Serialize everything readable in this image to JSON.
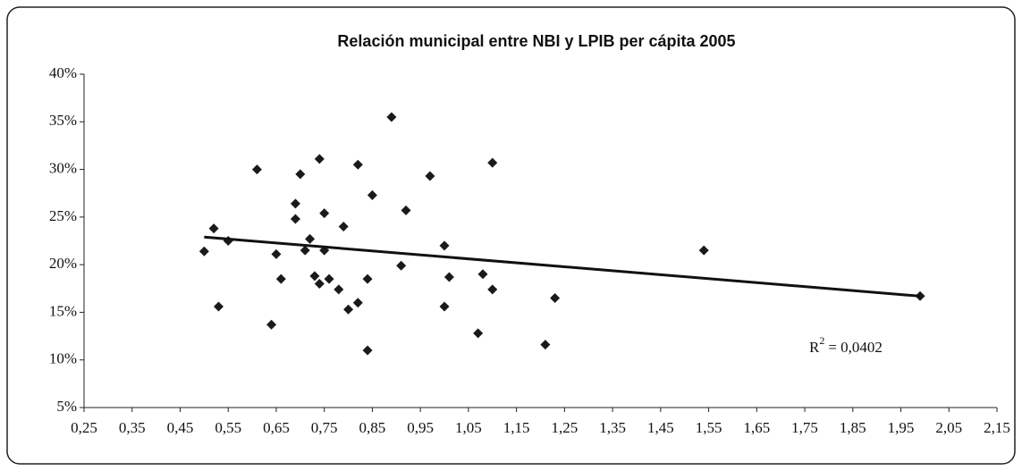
{
  "chart_data": {
    "type": "scatter",
    "title": "Relación municipal entre NBI y LPIB per cápita 2005",
    "series": [
      {
        "color": "#1a1a1a",
        "x": [
          0.5,
          0.52,
          0.53,
          0.55,
          0.61,
          0.64,
          0.65,
          0.66,
          0.69,
          0.69,
          0.7,
          0.71,
          0.72,
          0.73,
          0.74,
          0.74,
          0.75,
          0.75,
          0.76,
          0.78,
          0.79,
          0.8,
          0.82,
          0.82,
          0.84,
          0.84,
          0.85,
          0.89,
          0.91,
          0.92,
          0.97,
          1.0,
          1.0,
          1.01,
          1.07,
          1.08,
          1.1,
          1.1,
          1.21,
          1.23,
          1.54,
          1.99
        ],
        "values": [
          21.4,
          23.8,
          15.6,
          22.5,
          30.0,
          13.7,
          21.1,
          18.5,
          24.8,
          26.4,
          29.5,
          21.5,
          22.7,
          18.8,
          18.0,
          31.1,
          25.4,
          21.5,
          18.5,
          17.4,
          24.0,
          15.3,
          30.5,
          16.0,
          18.5,
          11.0,
          27.3,
          35.5,
          19.9,
          25.7,
          29.3,
          22.0,
          15.6,
          18.7,
          12.8,
          19.0,
          17.4,
          30.7,
          11.6,
          16.5,
          21.5,
          16.7
        ]
      }
    ],
    "trendline": {
      "x": [
        0.5,
        1.99
      ],
      "values": [
        22.9,
        16.7
      ]
    },
    "annotation": {
      "base": "R",
      "exponent": "2",
      "text": "= 0,0402"
    },
    "xlim": [
      0.25,
      2.15
    ],
    "xticks": [
      {
        "value": 0.25,
        "label": "0,25"
      },
      {
        "value": 0.35,
        "label": "0,35"
      },
      {
        "value": 0.45,
        "label": "0,45"
      },
      {
        "value": 0.55,
        "label": "0,55"
      },
      {
        "value": 0.65,
        "label": "0,65"
      },
      {
        "value": 0.75,
        "label": "0,75"
      },
      {
        "value": 0.85,
        "label": "0,85"
      },
      {
        "value": 0.95,
        "label": "0,95"
      },
      {
        "value": 1.05,
        "label": "1,05"
      },
      {
        "value": 1.15,
        "label": "1,15"
      },
      {
        "value": 1.25,
        "label": "1,25"
      },
      {
        "value": 1.35,
        "label": "1,35"
      },
      {
        "value": 1.45,
        "label": "1,45"
      },
      {
        "value": 1.55,
        "label": "1,55"
      },
      {
        "value": 1.65,
        "label": "1,65"
      },
      {
        "value": 1.75,
        "label": "1,75"
      },
      {
        "value": 1.85,
        "label": "1,85"
      },
      {
        "value": 1.95,
        "label": "1,95"
      },
      {
        "value": 2.05,
        "label": "2,05"
      },
      {
        "value": 2.15,
        "label": "2,15"
      }
    ],
    "ylim": [
      5,
      40
    ],
    "yticks": [
      {
        "value": 5,
        "label": "5%"
      },
      {
        "value": 10,
        "label": "10%"
      },
      {
        "value": 15,
        "label": "15%"
      },
      {
        "value": 20,
        "label": "20%"
      },
      {
        "value": 25,
        "label": "25%"
      },
      {
        "value": 30,
        "label": "30%"
      },
      {
        "value": 35,
        "label": "35%"
      },
      {
        "value": 40,
        "label": "40%"
      }
    ],
    "grid": false
  }
}
